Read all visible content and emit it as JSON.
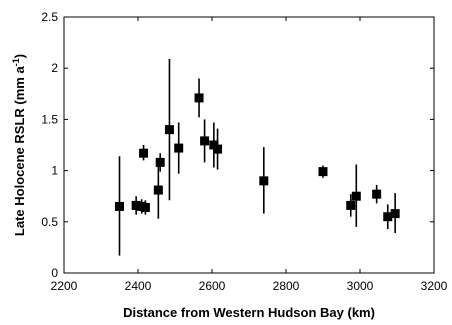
{
  "chart_data": {
    "type": "scatter",
    "xlabel": "Distance from Western Hudson Bay (km)",
    "ylabel_main": "Late Holocene RSLR (mm a",
    "ylabel_sup": "-1",
    "ylabel_close": ")",
    "xlim": [
      2200,
      3200
    ],
    "ylim": [
      0,
      2.5
    ],
    "xticks": [
      2200,
      2400,
      2600,
      2800,
      3000,
      3200
    ],
    "xtick_labels": [
      "2200",
      "2400",
      "2600",
      "2800",
      "3000",
      "3200"
    ],
    "yticks": [
      0,
      0.5,
      1,
      1.5,
      2,
      2.5
    ],
    "ytick_labels": [
      "0",
      "0.5",
      "1",
      "1.5",
      "2",
      "2.5"
    ],
    "grid": false,
    "marker": "square",
    "points": [
      {
        "x": 2350,
        "y": 0.65,
        "err_low": 0.17,
        "err_high": 1.14
      },
      {
        "x": 2395,
        "y": 0.66,
        "err_low": 0.57,
        "err_high": 0.75
      },
      {
        "x": 2410,
        "y": 0.65,
        "err_low": 0.58,
        "err_high": 0.72
      },
      {
        "x": 2415,
        "y": 1.17,
        "err_low": 1.1,
        "err_high": 1.25
      },
      {
        "x": 2420,
        "y": 0.64,
        "err_low": 0.57,
        "err_high": 0.71
      },
      {
        "x": 2455,
        "y": 0.81,
        "err_low": 0.53,
        "err_high": 1.08
      },
      {
        "x": 2460,
        "y": 1.08,
        "err_low": 0.99,
        "err_high": 1.17
      },
      {
        "x": 2485,
        "y": 1.4,
        "err_low": 0.71,
        "err_high": 2.09
      },
      {
        "x": 2510,
        "y": 1.22,
        "err_low": 0.97,
        "err_high": 1.47
      },
      {
        "x": 2565,
        "y": 1.71,
        "err_low": 1.52,
        "err_high": 1.9
      },
      {
        "x": 2580,
        "y": 1.29,
        "err_low": 1.08,
        "err_high": 1.5
      },
      {
        "x": 2605,
        "y": 1.25,
        "err_low": 1.03,
        "err_high": 1.47
      },
      {
        "x": 2615,
        "y": 1.21,
        "err_low": 1.01,
        "err_high": 1.41
      },
      {
        "x": 2740,
        "y": 0.9,
        "err_low": 0.58,
        "err_high": 1.23
      },
      {
        "x": 2900,
        "y": 0.99,
        "err_low": 0.93,
        "err_high": 1.05
      },
      {
        "x": 2975,
        "y": 0.66,
        "err_low": 0.55,
        "err_high": 0.77
      },
      {
        "x": 2990,
        "y": 0.75,
        "err_low": 0.45,
        "err_high": 1.06
      },
      {
        "x": 3045,
        "y": 0.77,
        "err_low": 0.68,
        "err_high": 0.86
      },
      {
        "x": 3075,
        "y": 0.55,
        "err_low": 0.43,
        "err_high": 0.67
      },
      {
        "x": 3095,
        "y": 0.58,
        "err_low": 0.39,
        "err_high": 0.78
      }
    ]
  }
}
